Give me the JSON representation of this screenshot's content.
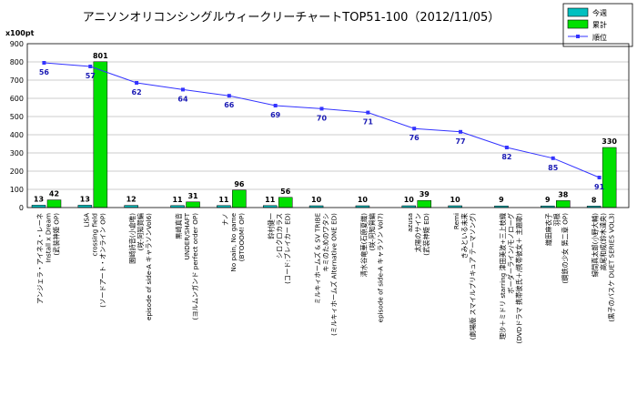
{
  "chart_data": {
    "type": "bar",
    "title": "アニソンオリコンシングルウィークリーチャートTOP51-100（2012/11/05）",
    "ylabel": "x100pt",
    "ylim": [
      0,
      900
    ],
    "yticks": [
      0,
      100,
      200,
      300,
      400,
      500,
      600,
      700,
      800,
      900
    ],
    "grid": true,
    "legend_position": "top-right",
    "categories": [
      [
        "アンジェラ・アイネス・レーネ",
        "Install x Dream",
        "(武装神姫 OP)"
      ],
      [
        "LiSA",
        "crossing field",
        "(ソードアート・オンライン OP)"
      ],
      [
        "園崎詩音(小倉唯)",
        "(咲-阿知賀編",
        "episode of side-A キャラソンVol6)"
      ],
      [
        "黒崎真音",
        "UNDER/SHAFT",
        "(ヨルムンガンド perfect order OP)"
      ],
      [
        "ナノ",
        "No pain, No game",
        "(BTOOOM! OP)"
      ],
      [
        "鈴村健一",
        "シロクロカラス",
        "(コード:ブレイカー ED)"
      ],
      [
        "ミルキィホームズ & SV TRIBE",
        "キミのためのワタシ",
        "(ミルキィホームズ Alternative ONE ED)"
      ],
      [
        "清水谷竜華(石原夏織)",
        "(咲-阿知賀編",
        "episode of side-A キャラソン Vol7)"
      ],
      [
        "azusa",
        "太陽のサイン",
        "(武装神姫 ED)"
      ],
      [
        "Remi",
        "きみといる未来",
        "(劇場版 スマイルプリキュア テーマソング)"
      ],
      [
        "理沙＋ミドリ starring 津田美波+三上枝織",
        "ボーダーライン/モノローグ",
        "(DVDドラマ 携帯彼氏＋/携帯彼女＋ 主題歌)"
      ],
      [
        "織田麻衣子",
        "羽根",
        "(鋼鉄の少女 第二章 OP)"
      ],
      [
        "緑間真太郎(小野大輔)",
        "高尾和成(鈴木達央)",
        "(黒子のバスケ DUET SERIES VOL3)"
      ]
    ],
    "series": [
      {
        "name": "今週",
        "type": "bar",
        "color": "#00c0c0",
        "values": [
          13,
          13,
          12,
          11,
          11,
          11,
          10,
          10,
          10,
          10,
          9,
          9,
          8
        ]
      },
      {
        "name": "累計",
        "type": "bar",
        "color": "#00e000",
        "values": [
          42,
          801,
          null,
          31,
          96,
          56,
          null,
          null,
          39,
          null,
          null,
          38,
          330
        ]
      },
      {
        "name": "順位",
        "type": "line",
        "color": "#3333ff",
        "values": [
          56,
          57,
          62,
          64,
          66,
          69,
          70,
          71,
          76,
          77,
          82,
          85,
          91
        ]
      }
    ],
    "line_y_values_on_axis": [
      795,
      775,
      685,
      648,
      614,
      560,
      543,
      522,
      434,
      416,
      330,
      271,
      165
    ]
  }
}
